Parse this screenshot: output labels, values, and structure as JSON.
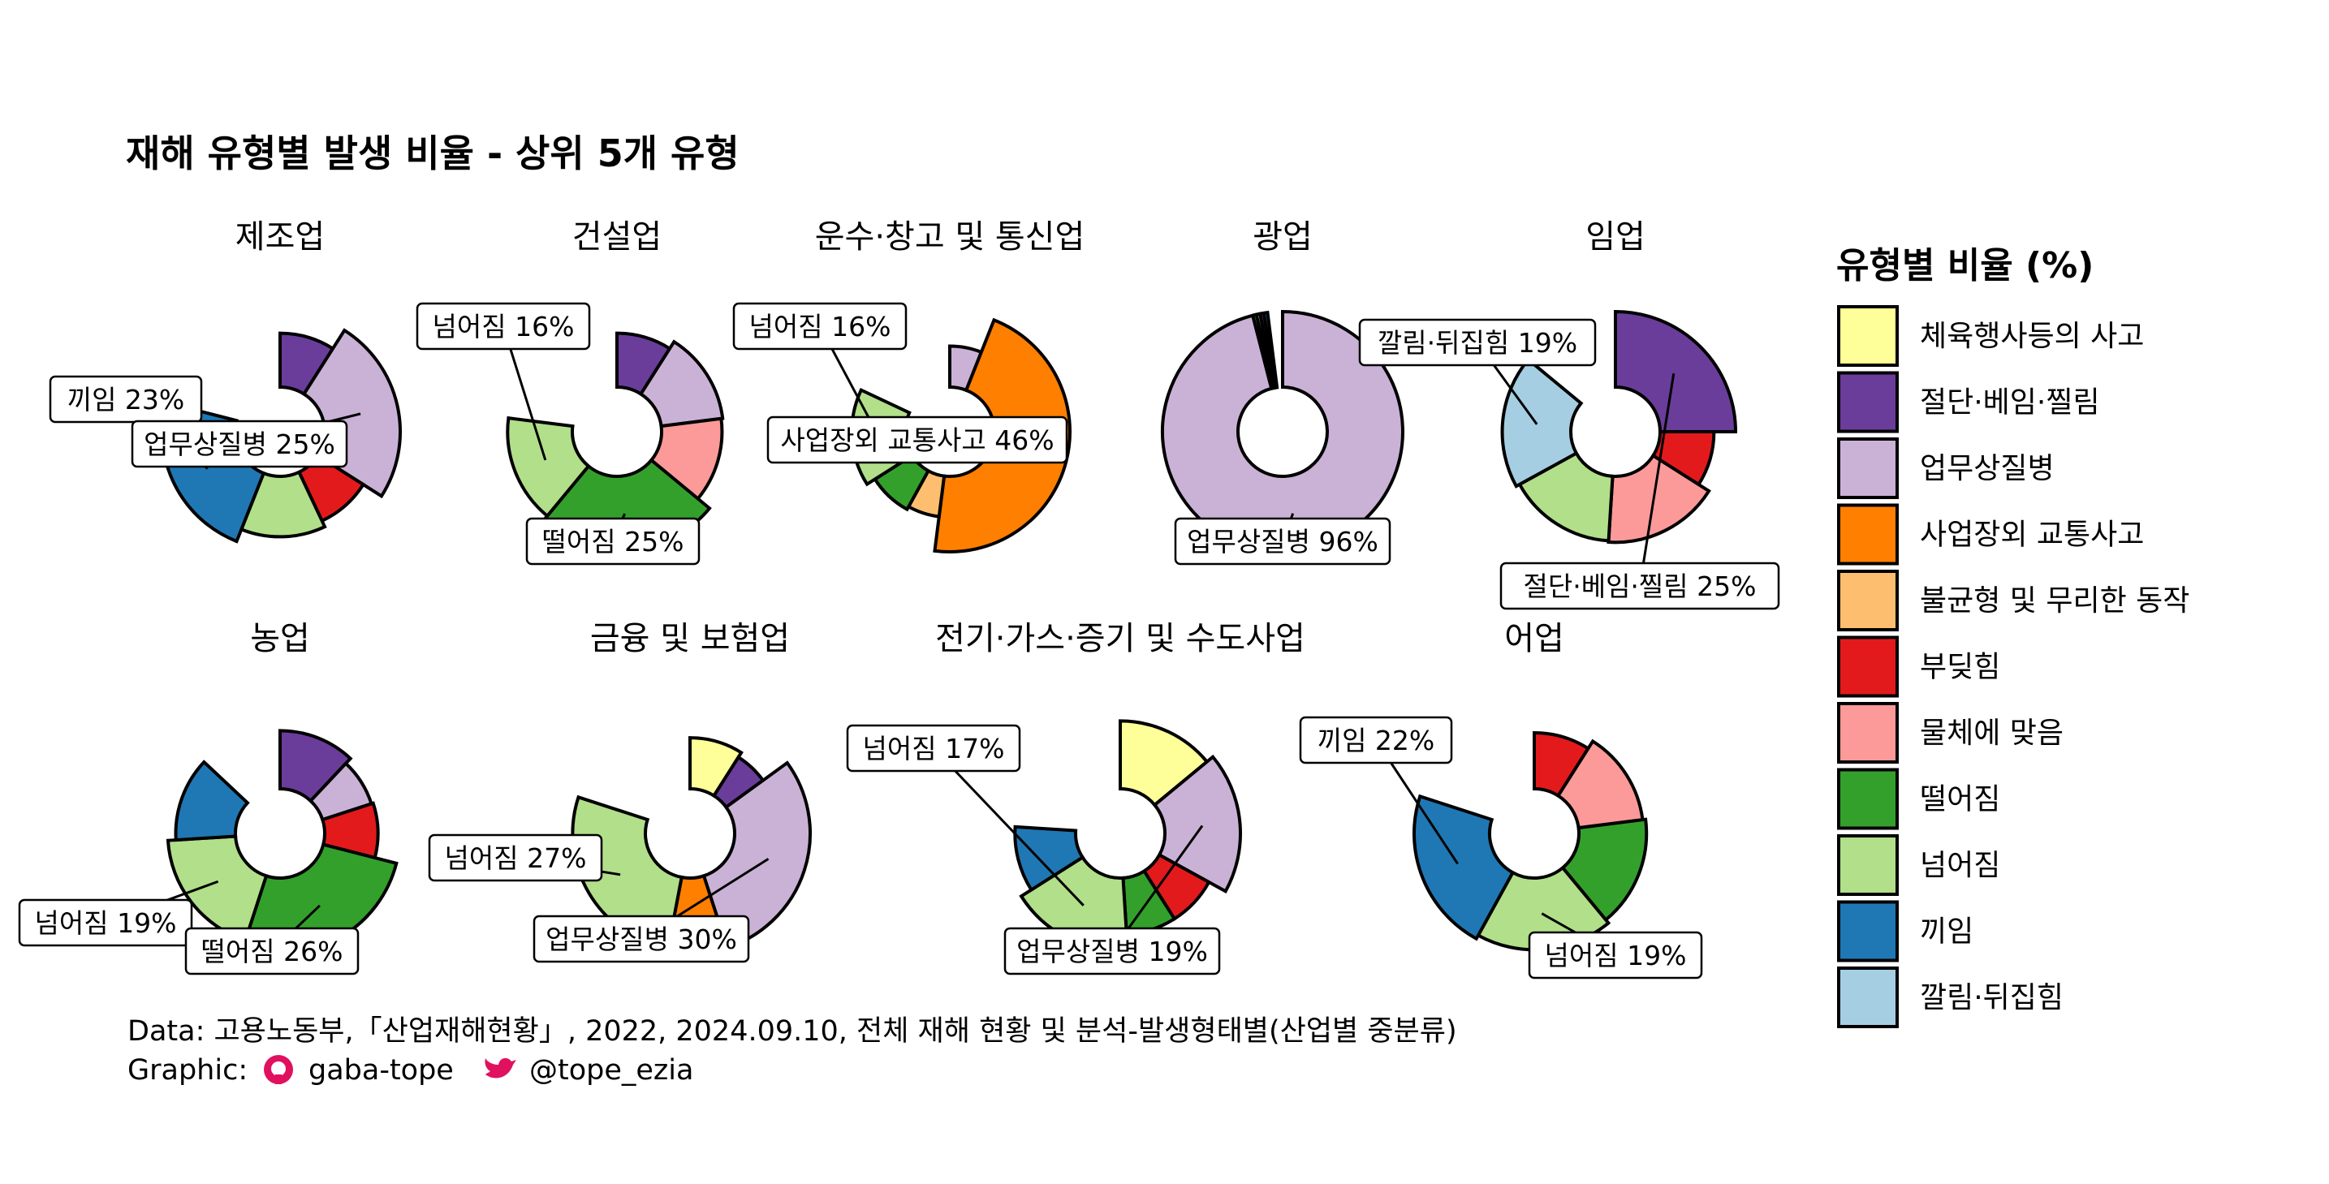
{
  "title": "재해 유형별 발생 비율 - 상위 5개 유형",
  "legend": {
    "title": "유형별 비율 (%)",
    "items": [
      {
        "label": "체육행사등의 사고",
        "color": "#ffff99"
      },
      {
        "label": "절단·베임·찔림",
        "color": "#6a3d9a"
      },
      {
        "label": "업무상질병",
        "color": "#cab2d6"
      },
      {
        "label": "사업장외 교통사고",
        "color": "#ff7f00"
      },
      {
        "label": "불균형 및 무리한 동작",
        "color": "#fdbf6f"
      },
      {
        "label": "부딪힘",
        "color": "#e31a1c"
      },
      {
        "label": "물체에 맞음",
        "color": "#fb9a99"
      },
      {
        "label": "떨어짐",
        "color": "#33a02c"
      },
      {
        "label": "넘어짐",
        "color": "#b2df8a"
      },
      {
        "label": "끼임",
        "color": "#1f78b4"
      },
      {
        "label": "깔림·뒤집힘",
        "color": "#a6cee3"
      }
    ]
  },
  "caption": {
    "line1": "Data: 고용노동부,「산업재해현황」, 2022, 2024.09.10, 전체 재해 현황 및 분석-발생형태별(산업별 중분류)",
    "graphic_prefix": "Graphic:",
    "github": "gaba-tope",
    "twitter": "@tope_ezia"
  },
  "chart_data": [
    {
      "type": "pie",
      "title": "제조업",
      "slices": [
        {
          "category": "절단·베임·찔림",
          "value": 9
        },
        {
          "category": "업무상질병",
          "value": 25
        },
        {
          "category": "부딪힘",
          "value": 9
        },
        {
          "category": "넘어짐",
          "value": 13
        },
        {
          "category": "끼임",
          "value": 23
        }
      ],
      "labels": [
        {
          "text": "끼임 23%",
          "category": "끼임"
        },
        {
          "text": "업무상질병 25%",
          "category": "업무상질병"
        }
      ]
    },
    {
      "type": "pie",
      "title": "건설업",
      "slices": [
        {
          "category": "절단·베임·찔림",
          "value": 9
        },
        {
          "category": "업무상질병",
          "value": 14
        },
        {
          "category": "물체에 맞음",
          "value": 13
        },
        {
          "category": "떨어짐",
          "value": 25
        },
        {
          "category": "넘어짐",
          "value": 16
        }
      ],
      "labels": [
        {
          "text": "넘어짐 16%",
          "category": "넘어짐"
        },
        {
          "text": "떨어짐 25%",
          "category": "떨어짐"
        }
      ]
    },
    {
      "type": "pie",
      "title": "운수·창고 및 통신업",
      "slices": [
        {
          "category": "업무상질병",
          "value": 6
        },
        {
          "category": "사업장외 교통사고",
          "value": 46
        },
        {
          "category": "불균형 및 무리한 동작",
          "value": 6
        },
        {
          "category": "떨어짐",
          "value": 8
        },
        {
          "category": "넘어짐",
          "value": 16
        }
      ],
      "labels": [
        {
          "text": "넘어짐 16%",
          "category": "넘어짐"
        },
        {
          "text": "사업장외 교통사고 46%",
          "category": "사업장외 교통사고"
        }
      ]
    },
    {
      "type": "pie",
      "title": "광업",
      "slices": [
        {
          "category": "업무상질병",
          "value": 96
        },
        {
          "category": "떨어짐",
          "value": 0.5
        },
        {
          "category": "넘어짐",
          "value": 0.5
        },
        {
          "category": "절단·베임·찔림",
          "value": 0.5
        },
        {
          "category": "끼임",
          "value": 0.5
        }
      ],
      "labels": [
        {
          "text": "업무상질병 96%",
          "category": "업무상질병"
        }
      ]
    },
    {
      "type": "pie",
      "title": "임업",
      "slices": [
        {
          "category": "절단·베임·찔림",
          "value": 25
        },
        {
          "category": "부딪힘",
          "value": 9
        },
        {
          "category": "물체에 맞음",
          "value": 17
        },
        {
          "category": "넘어짐",
          "value": 16
        },
        {
          "category": "깔림·뒤집힘",
          "value": 19
        }
      ],
      "labels": [
        {
          "text": "깔림·뒤집힘 19%",
          "category": "깔림·뒤집힘"
        },
        {
          "text": "절단·베임·찔림 25%",
          "category": "절단·베임·찔림"
        }
      ]
    },
    {
      "type": "pie",
      "title": "농업",
      "slices": [
        {
          "category": "절단·베임·찔림",
          "value": 12
        },
        {
          "category": "업무상질병",
          "value": 8
        },
        {
          "category": "부딪힘",
          "value": 9
        },
        {
          "category": "떨어짐",
          "value": 26
        },
        {
          "category": "넘어짐",
          "value": 19
        },
        {
          "category": "끼임",
          "value": 13
        }
      ],
      "labels": [
        {
          "text": "넘어짐 19%",
          "category": "넘어짐"
        },
        {
          "text": "떨어짐 26%",
          "category": "떨어짐"
        }
      ]
    },
    {
      "type": "pie",
      "title": "금융 및 보험업",
      "slices": [
        {
          "category": "체육행사등의 사고",
          "value": 9
        },
        {
          "category": "절단·베임·찔림",
          "value": 6
        },
        {
          "category": "업무상질병",
          "value": 30
        },
        {
          "category": "사업장외 교통사고",
          "value": 8
        },
        {
          "category": "넘어짐",
          "value": 27
        }
      ],
      "labels": [
        {
          "text": "넘어짐 27%",
          "category": "넘어짐"
        },
        {
          "text": "업무상질병 30%",
          "category": "업무상질병"
        }
      ]
    },
    {
      "type": "pie",
      "title": "전기·가스·증기 및 수도사업",
      "slices": [
        {
          "category": "체육행사등의 사고",
          "value": 14
        },
        {
          "category": "업무상질병",
          "value": 19
        },
        {
          "category": "부딪힘",
          "value": 8
        },
        {
          "category": "떨어짐",
          "value": 8
        },
        {
          "category": "넘어짐",
          "value": 17
        },
        {
          "category": "끼임",
          "value": 10
        }
      ],
      "labels": [
        {
          "text": "넘어짐 17%",
          "category": "넘어짐"
        },
        {
          "text": "업무상질병 19%",
          "category": "업무상질병"
        }
      ]
    },
    {
      "type": "pie",
      "title": "어업",
      "slices": [
        {
          "category": "부딪힘",
          "value": 9
        },
        {
          "category": "물체에 맞음",
          "value": 14
        },
        {
          "category": "떨어짐",
          "value": 16
        },
        {
          "category": "넘어짐",
          "value": 19
        },
        {
          "category": "끼임",
          "value": 22
        }
      ],
      "labels": [
        {
          "text": "끼임 22%",
          "category": "끼임"
        },
        {
          "text": "넘어짐 19%",
          "category": "넘어짐"
        }
      ]
    }
  ]
}
